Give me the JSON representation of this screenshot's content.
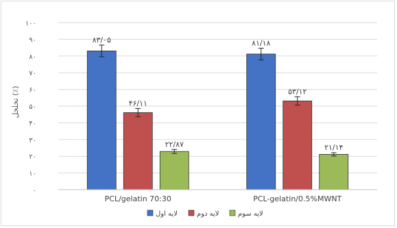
{
  "chart_data": {
    "type": "bar",
    "ylabel": "تخلخل (٪)",
    "ylim": [
      0,
      100
    ],
    "yticks": [
      0,
      10,
      20,
      30,
      40,
      50,
      60,
      70,
      80,
      90,
      100
    ],
    "ytick_labels": [
      "۰",
      "۱۰",
      "۲۰",
      "۳۰",
      "۴۰",
      "۵۰",
      "۶۰",
      "۷۰",
      "۸۰",
      "۹۰",
      "۱۰۰"
    ],
    "categories": [
      "PCL/gelatin 70:30",
      "PCL-gelatin/0.5%MWNT"
    ],
    "series": [
      {
        "name": "لایه اول",
        "color": "#4472c4",
        "values": [
          83.05,
          81.18
        ],
        "errors": [
          3.5,
          3.5
        ],
        "labels": [
          "۸۳/۰۵",
          "۸۱/۱۸"
        ]
      },
      {
        "name": "لایه دوم",
        "color": "#c0504d",
        "values": [
          46.11,
          53.12
        ],
        "errors": [
          2.5,
          2.5
        ],
        "labels": [
          "۴۶/۱۱",
          "۵۳/۱۲"
        ]
      },
      {
        "name": "لایه سوم",
        "color": "#9bbb59",
        "values": [
          22.87,
          21.14
        ],
        "errors": [
          1.2,
          1.0
        ],
        "labels": [
          "۲۲/۸۷",
          "۲۱/۱۴"
        ]
      }
    ],
    "grid": true,
    "legend_position": "bottom"
  }
}
